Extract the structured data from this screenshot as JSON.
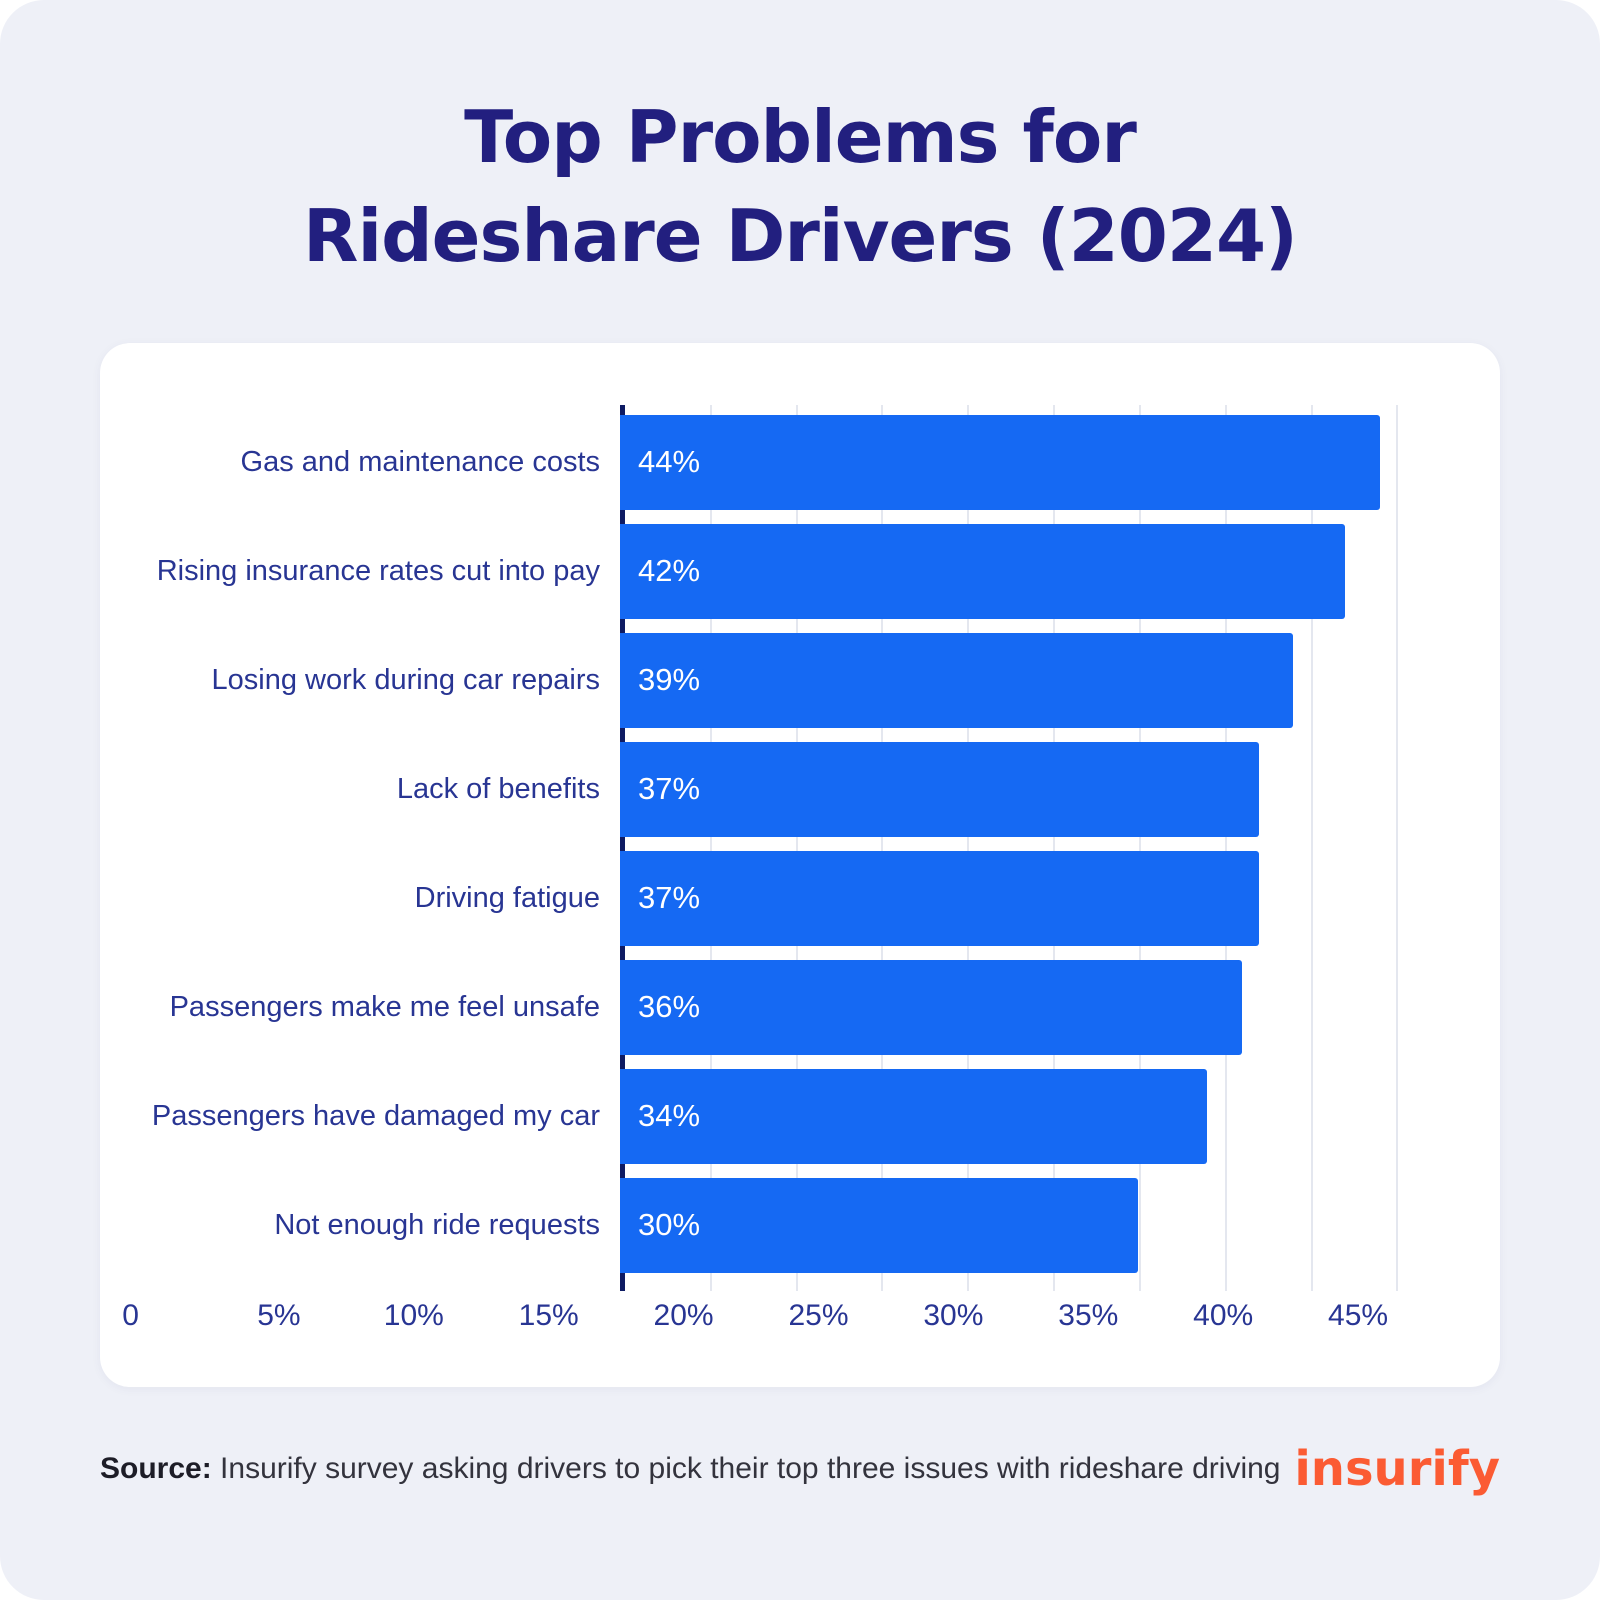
{
  "page": {
    "background": "#eef0f7"
  },
  "title": {
    "line1": "Top Problems for",
    "line2": "Rideshare Drivers (2024)"
  },
  "chart_data": {
    "type": "bar",
    "orientation": "horizontal",
    "title": "Top Problems for Rideshare Drivers (2024)",
    "categories": [
      "Gas and maintenance costs",
      "Rising insurance rates cut into pay",
      "Losing work during car repairs",
      "Lack of benefits",
      "Driving fatigue",
      "Passengers make me feel unsafe",
      "Passengers have damaged my car",
      "Not enough ride requests"
    ],
    "values": [
      44,
      42,
      39,
      37,
      37,
      36,
      34,
      30
    ],
    "value_labels": [
      "44%",
      "42%",
      "39%",
      "37%",
      "37%",
      "36%",
      "34%",
      "30%"
    ],
    "xlabel": "",
    "ylabel": "",
    "xlim": [
      0,
      49
    ],
    "xticks": [
      {
        "value": 0,
        "label": "0"
      },
      {
        "value": 5,
        "label": "5%"
      },
      {
        "value": 10,
        "label": "10%"
      },
      {
        "value": 15,
        "label": "15%"
      },
      {
        "value": 20,
        "label": "20%"
      },
      {
        "value": 25,
        "label": "25%"
      },
      {
        "value": 30,
        "label": "30%"
      },
      {
        "value": 35,
        "label": "35%"
      },
      {
        "value": 40,
        "label": "40%"
      },
      {
        "value": 45,
        "label": "45%"
      }
    ],
    "grid": "vertical",
    "legend": "none",
    "bar_color": "#1569f3",
    "axis_color": "#0e1b63",
    "label_color": "#283593",
    "value_label_color": "#ffffff"
  },
  "footer": {
    "source_label": "Source:",
    "source_text": "Insurify survey asking drivers to pick their top three issues with rideshare driving",
    "logo": "insurify",
    "logo_color": "#fb5b33"
  }
}
